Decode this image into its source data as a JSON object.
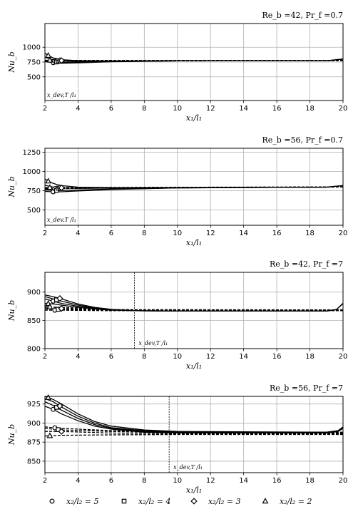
{
  "legend": [
    {
      "marker": "circle",
      "label": "x₂/l₂ = 5"
    },
    {
      "marker": "square",
      "label": "x₂/l₂ = 4"
    },
    {
      "marker": "diamond",
      "label": "x₂/l₂ = 3"
    },
    {
      "marker": "triangle",
      "label": "x₂/l₂ = 2"
    }
  ],
  "chart_data": [
    {
      "type": "line",
      "title": "Re_b =42, Pr_f =0.7",
      "xlabel": "x₁/l₁",
      "ylabel": "Nu_b",
      "xlim": [
        2,
        20
      ],
      "ylim": [
        100,
        1400
      ],
      "xticks": [
        2,
        4,
        6,
        8,
        10,
        12,
        14,
        16,
        18,
        20
      ],
      "yticks": [
        500,
        750,
        1000
      ],
      "grid": true,
      "annotation": "x_dev,T /l₁",
      "x_dev": 2.2,
      "series": [
        {
          "marker": "circle",
          "solid": [
            [
              2,
              760
            ],
            [
              2.5,
              740
            ],
            [
              3,
              730
            ],
            [
              4,
              735
            ],
            [
              6,
              755
            ],
            [
              10,
              770
            ],
            [
              19,
              770
            ],
            [
              20,
              800
            ]
          ],
          "dashed": [
            [
              2,
              760
            ],
            [
              2.5,
              765
            ],
            [
              3,
              765
            ],
            [
              6,
              768
            ],
            [
              19,
              770
            ],
            [
              20,
              772
            ]
          ]
        },
        {
          "marker": "square",
          "solid": [
            [
              2,
              780
            ],
            [
              2.5,
              755
            ],
            [
              3,
              745
            ],
            [
              4,
              748
            ],
            [
              6,
              760
            ],
            [
              10,
              770
            ],
            [
              19,
              770
            ],
            [
              20,
              800
            ]
          ],
          "dashed": [
            [
              2,
              770
            ],
            [
              2.5,
              770
            ],
            [
              3,
              770
            ],
            [
              19,
              772
            ],
            [
              20,
              772
            ]
          ]
        },
        {
          "marker": "diamond",
          "solid": [
            [
              2,
              830
            ],
            [
              2.5,
              790
            ],
            [
              3,
              770
            ],
            [
              4,
              762
            ],
            [
              6,
              765
            ],
            [
              10,
              770
            ],
            [
              19,
              770
            ],
            [
              20,
              800
            ]
          ],
          "dashed": [
            [
              2,
              775
            ],
            [
              2.5,
              775
            ],
            [
              19,
              775
            ],
            [
              20,
              775
            ]
          ]
        },
        {
          "marker": "triangle",
          "solid": [
            [
              2,
              900
            ],
            [
              2.2,
              860
            ],
            [
              2.5,
              820
            ],
            [
              3,
              790
            ],
            [
              4,
              772
            ],
            [
              6,
              768
            ],
            [
              10,
              770
            ],
            [
              19,
              770
            ],
            [
              20,
              800
            ]
          ],
          "dashed": [
            [
              2,
              780
            ],
            [
              2.5,
              778
            ],
            [
              19,
              777
            ],
            [
              20,
              777
            ]
          ]
        }
      ]
    },
    {
      "type": "line",
      "title": "Re_b =56, Pr_f =0.7",
      "xlabel": "x₁/l₁",
      "ylabel": "Nu_b",
      "xlim": [
        2,
        20
      ],
      "ylim": [
        300,
        1300
      ],
      "xticks": [
        2,
        4,
        6,
        8,
        10,
        12,
        14,
        16,
        18,
        20
      ],
      "yticks": [
        500,
        750,
        1000,
        1250
      ],
      "grid": true,
      "annotation": "x_dev,T /l₁",
      "x_dev": 2.2,
      "series": [
        {
          "marker": "circle",
          "solid": [
            [
              2,
              740
            ],
            [
              2.5,
              735
            ],
            [
              3,
              735
            ],
            [
              4,
              745
            ],
            [
              6,
              765
            ],
            [
              10,
              785
            ],
            [
              19,
              795
            ],
            [
              20,
              815
            ]
          ],
          "dashed": [
            [
              2,
              770
            ],
            [
              2.5,
              775
            ],
            [
              6,
              785
            ],
            [
              19,
              795
            ],
            [
              20,
              797
            ]
          ]
        },
        {
          "marker": "square",
          "solid": [
            [
              2,
              760
            ],
            [
              2.5,
              755
            ],
            [
              3,
              752
            ],
            [
              4,
              758
            ],
            [
              6,
              770
            ],
            [
              10,
              785
            ],
            [
              19,
              795
            ],
            [
              20,
              815
            ]
          ],
          "dashed": [
            [
              2,
              780
            ],
            [
              2.5,
              782
            ],
            [
              19,
              796
            ],
            [
              20,
              797
            ]
          ]
        },
        {
          "marker": "diamond",
          "solid": [
            [
              2,
              820
            ],
            [
              2.5,
              795
            ],
            [
              3,
              785
            ],
            [
              4,
              780
            ],
            [
              6,
              782
            ],
            [
              10,
              788
            ],
            [
              19,
              795
            ],
            [
              20,
              815
            ]
          ],
          "dashed": [
            [
              2,
              785
            ],
            [
              2.5,
              786
            ],
            [
              19,
              797
            ],
            [
              20,
              798
            ]
          ]
        },
        {
          "marker": "triangle",
          "solid": [
            [
              2,
              900
            ],
            [
              2.3,
              860
            ],
            [
              2.7,
              830
            ],
            [
              3,
              815
            ],
            [
              4,
              795
            ],
            [
              6,
              788
            ],
            [
              10,
              790
            ],
            [
              19,
              795
            ],
            [
              20,
              815
            ]
          ],
          "dashed": [
            [
              2,
              790
            ],
            [
              2.5,
              790
            ],
            [
              19,
              798
            ],
            [
              20,
              798
            ]
          ]
        }
      ]
    },
    {
      "type": "line",
      "title": "Re_b =42, Pr_f =7",
      "xlabel": "x₁/l₁",
      "ylabel": "Nu_b",
      "xlim": [
        2,
        20
      ],
      "ylim": [
        800,
        935
      ],
      "xticks": [
        2,
        4,
        6,
        8,
        10,
        12,
        14,
        16,
        18,
        20
      ],
      "yticks": [
        800,
        850,
        900
      ],
      "grid": true,
      "annotation": "x_dev,T /l₁",
      "x_dev": 7.4,
      "series": [
        {
          "marker": "circle",
          "solid": [
            [
              2,
              888
            ],
            [
              2.5,
              884
            ],
            [
              3,
              880
            ],
            [
              4,
              875
            ],
            [
              5,
              871
            ],
            [
              6,
              868.5
            ],
            [
              7.5,
              867
            ],
            [
              10,
              866.5
            ],
            [
              19,
              866.5
            ],
            [
              19.6,
              869
            ],
            [
              20,
              880
            ]
          ],
          "dashed": [
            [
              2,
              868
            ],
            [
              3,
              868
            ],
            [
              6,
              867
            ],
            [
              20,
              867
            ]
          ]
        },
        {
          "marker": "square",
          "solid": [
            [
              2,
              892
            ],
            [
              2.5,
              888
            ],
            [
              3,
              884
            ],
            [
              4,
              877
            ],
            [
              5,
              872
            ],
            [
              6,
              869
            ],
            [
              7.5,
              867
            ],
            [
              10,
              866.5
            ],
            [
              19,
              866.5
            ],
            [
              19.6,
              869
            ],
            [
              20,
              880
            ]
          ],
          "dashed": [
            [
              2,
              870
            ],
            [
              3,
              869.5
            ],
            [
              6,
              868
            ],
            [
              20,
              867.5
            ]
          ]
        },
        {
          "marker": "diamond",
          "solid": [
            [
              2,
              895
            ],
            [
              2.5,
              892
            ],
            [
              3,
              888
            ],
            [
              4,
              879
            ],
            [
              5,
              873
            ],
            [
              6,
              869.5
            ],
            [
              7.5,
              867
            ],
            [
              10,
              866.5
            ],
            [
              19,
              866.5
            ],
            [
              19.6,
              869
            ],
            [
              20,
              880
            ]
          ],
          "dashed": [
            [
              2,
              872
            ],
            [
              3,
              871
            ],
            [
              6,
              868.5
            ],
            [
              20,
              868
            ]
          ]
        },
        {
          "marker": "triangle",
          "solid": [
            [
              2,
              880
            ],
            [
              2.5,
              879
            ],
            [
              3,
              877
            ],
            [
              4,
              873
            ],
            [
              5,
              870
            ],
            [
              6,
              868
            ],
            [
              7.5,
              867
            ],
            [
              10,
              866.5
            ],
            [
              19,
              866.5
            ],
            [
              19.6,
              869
            ],
            [
              20,
              880
            ]
          ],
          "dashed": [
            [
              2,
              874
            ],
            [
              3,
              873
            ],
            [
              6,
              869
            ],
            [
              20,
              868.5
            ]
          ]
        }
      ]
    },
    {
      "type": "line",
      "title": "Re_b =56, Pr_f =7",
      "xlabel": "x₁/l₁",
      "ylabel": "Nu_b",
      "xlim": [
        2,
        20
      ],
      "ylim": [
        835,
        935
      ],
      "xticks": [
        2,
        4,
        6,
        8,
        10,
        12,
        14,
        16,
        18,
        20
      ],
      "yticks": [
        850,
        875,
        900,
        925
      ],
      "grid": true,
      "annotation": "x_dev,T /l₁",
      "x_dev": 9.5,
      "series": [
        {
          "marker": "circle",
          "solid": [
            [
              2,
              922
            ],
            [
              2.5,
              918
            ],
            [
              3,
              912
            ],
            [
              4,
              903
            ],
            [
              5,
              896
            ],
            [
              6,
              892
            ],
            [
              8,
              888
            ],
            [
              10,
              887
            ],
            [
              19,
              887
            ],
            [
              19.7,
              889
            ],
            [
              20,
              893
            ]
          ],
          "dashed": [
            [
              2,
              895
            ],
            [
              2.5,
              894
            ],
            [
              3,
              893
            ],
            [
              6,
              890
            ],
            [
              10,
              888
            ],
            [
              20,
              888
            ]
          ]
        },
        {
          "marker": "square",
          "solid": [
            [
              2,
              928
            ],
            [
              2.5,
              923
            ],
            [
              3,
              917
            ],
            [
              4,
              906
            ],
            [
              5,
              898
            ],
            [
              6,
              893
            ],
            [
              8,
              889
            ],
            [
              10,
              887.5
            ],
            [
              19,
              887.5
            ],
            [
              19.7,
              889
            ],
            [
              20,
              893
            ]
          ],
          "dashed": [
            [
              2,
              893
            ],
            [
              2.5,
              892
            ],
            [
              3,
              891
            ],
            [
              6,
              889
            ],
            [
              10,
              887
            ],
            [
              20,
              887
            ]
          ]
        },
        {
          "marker": "diamond",
          "solid": [
            [
              2,
              932
            ],
            [
              2.5,
              928
            ],
            [
              3,
              921
            ],
            [
              4,
              909
            ],
            [
              5,
              900
            ],
            [
              6,
              894
            ],
            [
              8,
              890
            ],
            [
              10,
              888
            ],
            [
              19,
              888
            ],
            [
              19.7,
              890
            ],
            [
              20,
              894
            ]
          ],
          "dashed": [
            [
              2,
              889
            ],
            [
              2.5,
              889
            ],
            [
              3,
              889
            ],
            [
              6,
              887
            ],
            [
              10,
              886
            ],
            [
              20,
              886
            ]
          ]
        },
        {
          "marker": "triangle",
          "solid": [
            [
              2,
              935
            ],
            [
              2.5,
              931
            ],
            [
              3,
              925
            ],
            [
              4,
              912
            ],
            [
              5,
              902
            ],
            [
              6,
              896
            ],
            [
              8,
              891
            ],
            [
              10,
              889
            ],
            [
              19,
              888
            ],
            [
              19.7,
              890
            ],
            [
              20,
              895
            ]
          ],
          "dashed": [
            [
              2,
              883
            ],
            [
              2.5,
              883.5
            ],
            [
              3,
              884
            ],
            [
              6,
              884.5
            ],
            [
              10,
              885
            ],
            [
              20,
              885
            ]
          ]
        }
      ]
    }
  ]
}
